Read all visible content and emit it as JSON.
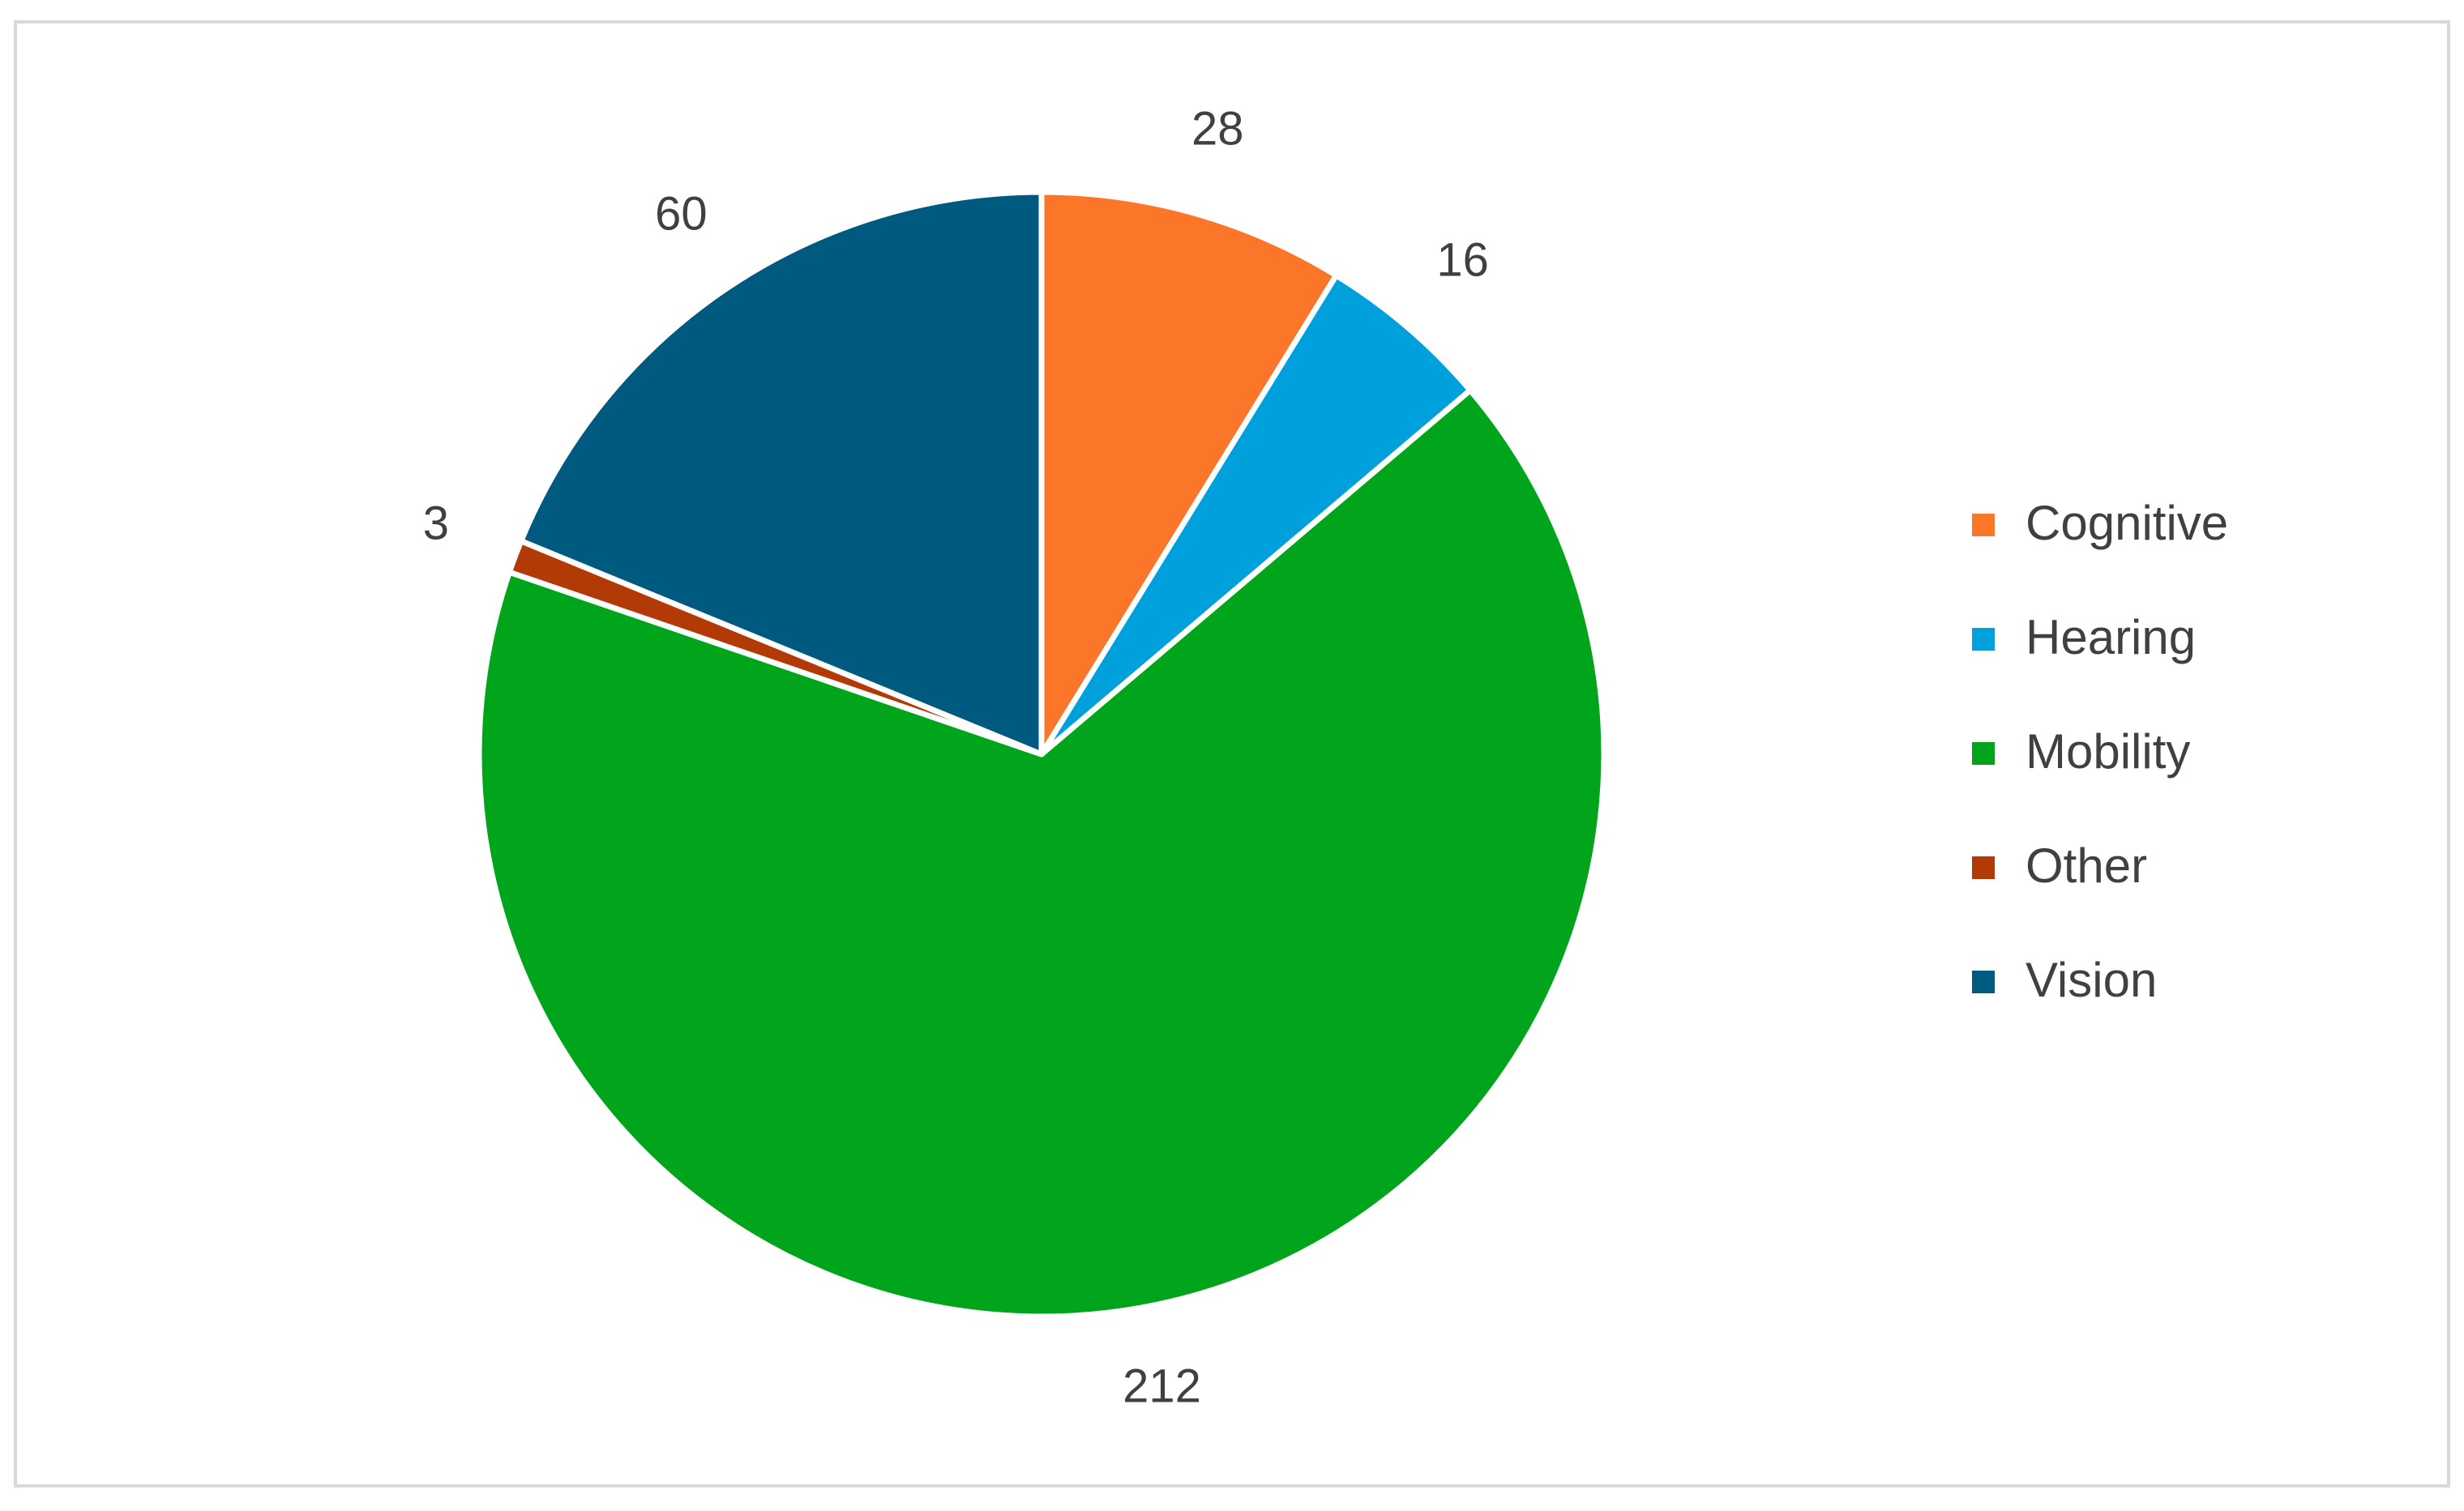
{
  "chart_data": {
    "type": "pie",
    "categories": [
      "Cognitive",
      "Hearing",
      "Mobility",
      "Other",
      "Vision"
    ],
    "values": [
      28,
      16,
      212,
      3,
      60
    ],
    "colors": [
      "#fb7628",
      "#00a0dc",
      "#00a51b",
      "#b23a06",
      "#005a80"
    ],
    "legend": "right"
  }
}
